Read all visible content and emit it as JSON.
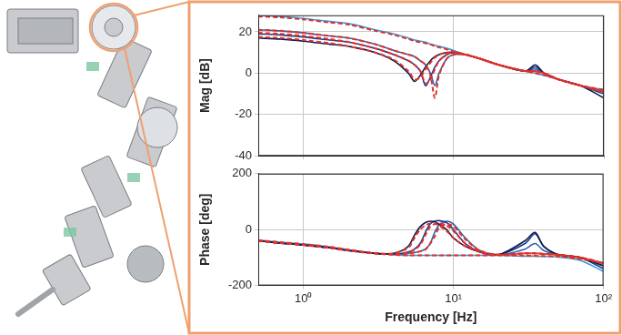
{
  "chart_data": [
    {
      "type": "line",
      "ylabel": "Mag [dB]",
      "log": "x",
      "grid": true,
      "tick_labels": "y",
      "x": [
        0.5,
        0.7,
        1,
        1.5,
        2,
        3,
        4,
        5,
        5.5,
        6,
        6.5,
        7,
        7.5,
        8,
        9,
        10,
        12,
        15,
        20,
        30,
        35,
        40,
        50,
        70,
        100
      ],
      "xlim": [
        0.5,
        100
      ],
      "xticks": [
        {
          "value": 1,
          "label": "10⁰"
        },
        {
          "value": 10,
          "label": "10¹"
        },
        {
          "value": 100,
          "label": "10²"
        }
      ],
      "ylim": [
        -40,
        28
      ],
      "yticks": [
        -40,
        -20,
        0,
        20
      ],
      "series": [
        {
          "color": "#0d1b4f",
          "line_style": "solid",
          "values": [
            17,
            16.5,
            15.5,
            14,
            13,
            10,
            6,
            0,
            -4,
            -1,
            3,
            6,
            8,
            9,
            10,
            10,
            9,
            7,
            4,
            1,
            4,
            0,
            -3,
            -6,
            -12
          ]
        },
        {
          "color": "#1a3a8a",
          "line_style": "solid",
          "values": [
            19,
            18.5,
            17.5,
            16,
            15,
            12,
            9,
            6,
            4,
            1,
            -6,
            -2,
            3,
            6,
            9,
            10,
            9,
            7,
            4,
            1,
            3,
            0,
            -3,
            -6,
            -10
          ]
        },
        {
          "color": "#2e62b0",
          "line_style": "solid",
          "values": [
            21,
            20.5,
            19.5,
            18,
            17,
            14,
            11,
            9,
            8,
            6,
            4,
            0,
            -6,
            0,
            7,
            9,
            9,
            7,
            4,
            1,
            2,
            0,
            -3,
            -6,
            -9
          ]
        },
        {
          "color": "#3b9ad6",
          "line_style": "solid",
          "values": [
            28,
            27.5,
            26.5,
            25,
            24,
            21,
            19,
            17,
            16,
            15.5,
            15,
            14,
            13.5,
            13,
            12,
            11,
            9,
            7,
            4,
            1,
            0,
            -1,
            -3,
            -6,
            -8
          ]
        },
        {
          "color": "#e0302a",
          "line_style": "dashed",
          "values": [
            17.5,
            17,
            16,
            14.5,
            13,
            10,
            6.5,
            1,
            -3,
            -2,
            2,
            5,
            7.5,
            9,
            10,
            10,
            9,
            7,
            4,
            1,
            1,
            0,
            -3,
            -6,
            -9
          ]
        },
        {
          "color": "#e0302a",
          "line_style": "dashed",
          "values": [
            19.5,
            19,
            18,
            16.5,
            15,
            12,
            9,
            6,
            4,
            1,
            -5,
            -3,
            2,
            6,
            9,
            10,
            9,
            7,
            4,
            1,
            1,
            0,
            -3,
            -6,
            -9
          ]
        },
        {
          "color": "#e0302a",
          "line_style": "dashed",
          "values": [
            21,
            20.5,
            19.5,
            18,
            17,
            14,
            11,
            9,
            8,
            6,
            4,
            -1,
            -12,
            -1,
            7,
            9,
            9,
            7,
            4,
            1,
            1,
            0,
            -3,
            -6,
            -9
          ]
        },
        {
          "color": "#e0302a",
          "line_style": "dashed",
          "values": [
            27.5,
            27,
            26,
            24.5,
            23.5,
            20.5,
            18.5,
            16.5,
            15.5,
            15,
            14.5,
            14,
            13,
            12.5,
            11.5,
            10.5,
            9,
            7,
            4,
            1,
            0,
            -1,
            -3,
            -6,
            -8
          ]
        }
      ]
    },
    {
      "type": "line",
      "xlabel": "Frequency [Hz]",
      "ylabel": "Phase [deg]",
      "log": "x",
      "grid": true,
      "x": [
        0.5,
        0.7,
        1,
        1.5,
        2,
        3,
        4,
        5,
        5.5,
        6,
        6.5,
        7,
        7.5,
        8,
        9,
        10,
        12,
        15,
        20,
        30,
        35,
        40,
        50,
        70,
        100
      ],
      "xlim": [
        0.5,
        100
      ],
      "xticks": [
        {
          "value": 1,
          "label": "10⁰"
        },
        {
          "value": 10,
          "label": "10¹"
        },
        {
          "value": 100,
          "label": "10²"
        }
      ],
      "ylim": [
        -200,
        200
      ],
      "yticks": [
        -200,
        0,
        200
      ],
      "series": [
        {
          "color": "#0d1b4f",
          "line_style": "solid",
          "values": [
            -40,
            -48,
            -55,
            -65,
            -75,
            -85,
            -85,
            -60,
            -20,
            10,
            25,
            30,
            28,
            20,
            0,
            -30,
            -60,
            -80,
            -90,
            -40,
            -10,
            -60,
            -90,
            -100,
            -130
          ]
        },
        {
          "color": "#1a3a8a",
          "line_style": "solid",
          "values": [
            -40,
            -48,
            -55,
            -65,
            -75,
            -85,
            -88,
            -80,
            -70,
            -50,
            -10,
            20,
            30,
            32,
            25,
            0,
            -50,
            -80,
            -90,
            -50,
            -15,
            -60,
            -90,
            -100,
            -140
          ]
        },
        {
          "color": "#2e62b0",
          "line_style": "solid",
          "values": [
            -40,
            -48,
            -55,
            -65,
            -75,
            -85,
            -88,
            -85,
            -82,
            -78,
            -70,
            -50,
            -10,
            15,
            30,
            20,
            -30,
            -75,
            -90,
            -70,
            -50,
            -75,
            -90,
            -100,
            -130
          ]
        },
        {
          "color": "#3b9ad6",
          "line_style": "solid",
          "values": [
            -38,
            -45,
            -52,
            -62,
            -72,
            -85,
            -90,
            -92,
            -92,
            -92,
            -92,
            -92,
            -92,
            -92,
            -92,
            -92,
            -92,
            -92,
            -92,
            -95,
            -95,
            -96,
            -98,
            -110,
            -150
          ]
        },
        {
          "color": "#e0302a",
          "line_style": "dashed",
          "values": [
            -40,
            -48,
            -55,
            -65,
            -75,
            -85,
            -85,
            -65,
            -30,
            0,
            15,
            22,
            22,
            15,
            -5,
            -30,
            -60,
            -80,
            -90,
            -85,
            -85,
            -87,
            -90,
            -100,
            -120
          ]
        },
        {
          "color": "#e0302a",
          "line_style": "dashed",
          "values": [
            -40,
            -48,
            -55,
            -65,
            -75,
            -85,
            -88,
            -82,
            -72,
            -55,
            -20,
            10,
            20,
            22,
            15,
            -5,
            -50,
            -80,
            -90,
            -85,
            -85,
            -87,
            -90,
            -100,
            -120
          ]
        },
        {
          "color": "#e0302a",
          "line_style": "dashed",
          "values": [
            -40,
            -48,
            -55,
            -65,
            -75,
            -85,
            -88,
            -85,
            -82,
            -78,
            -72,
            -50,
            -25,
            5,
            20,
            12,
            -35,
            -75,
            -90,
            -85,
            -85,
            -87,
            -90,
            -100,
            -120
          ]
        },
        {
          "color": "#e0302a",
          "line_style": "dashed",
          "values": [
            -38,
            -45,
            -52,
            -62,
            -72,
            -85,
            -90,
            -92,
            -92,
            -92,
            -92,
            -92,
            -92,
            -92,
            -92,
            -92,
            -92,
            -92,
            -92,
            -93,
            -94,
            -95,
            -97,
            -105,
            -120
          ]
        }
      ]
    }
  ]
}
